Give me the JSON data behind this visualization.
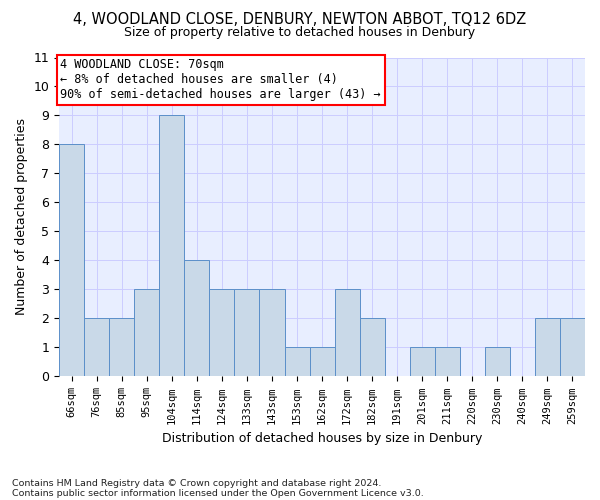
{
  "title": "4, WOODLAND CLOSE, DENBURY, NEWTON ABBOT, TQ12 6DZ",
  "subtitle": "Size of property relative to detached houses in Denbury",
  "xlabel": "Distribution of detached houses by size in Denbury",
  "ylabel": "Number of detached properties",
  "footnote1": "Contains HM Land Registry data © Crown copyright and database right 2024.",
  "footnote2": "Contains public sector information licensed under the Open Government Licence v3.0.",
  "categories": [
    "66sqm",
    "76sqm",
    "85sqm",
    "95sqm",
    "104sqm",
    "114sqm",
    "124sqm",
    "133sqm",
    "143sqm",
    "153sqm",
    "162sqm",
    "172sqm",
    "182sqm",
    "191sqm",
    "201sqm",
    "211sqm",
    "220sqm",
    "230sqm",
    "240sqm",
    "249sqm",
    "259sqm"
  ],
  "values": [
    8,
    2,
    2,
    3,
    9,
    4,
    3,
    3,
    3,
    1,
    1,
    3,
    2,
    0,
    1,
    1,
    0,
    1,
    0,
    2,
    2
  ],
  "bar_color": "#c9d9e8",
  "bar_edge_color": "#5b8fc9",
  "annotation_text": "4 WOODLAND CLOSE: 70sqm\n← 8% of detached houses are smaller (4)\n90% of semi-detached houses are larger (43) →",
  "annotation_box_color": "white",
  "annotation_box_edge_color": "red",
  "ylim": [
    0,
    11
  ],
  "yticks": [
    0,
    1,
    2,
    3,
    4,
    5,
    6,
    7,
    8,
    9,
    10,
    11
  ],
  "grid_color": "#ccccff",
  "background_color": "#e8eeff"
}
